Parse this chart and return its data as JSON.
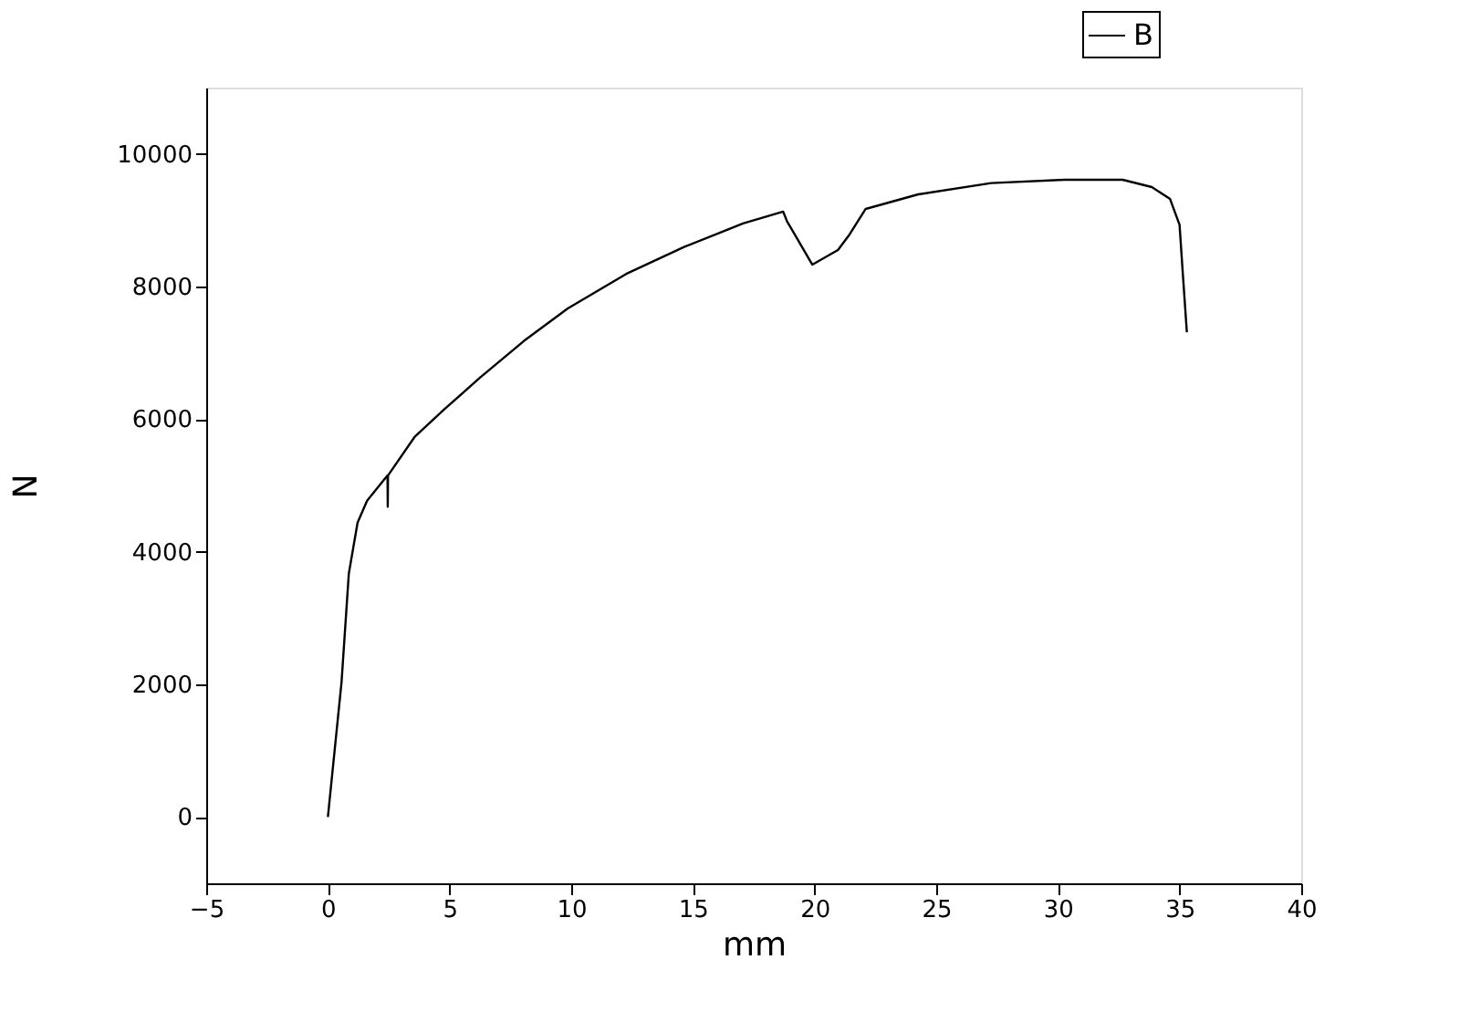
{
  "chart_data": {
    "type": "line",
    "xlabel": "mm",
    "ylabel": "N",
    "xlim": [
      -5,
      40
    ],
    "xticks": [
      -5,
      0,
      5,
      10,
      15,
      20,
      25,
      30,
      35,
      40
    ],
    "ylim": [
      -1000,
      11000
    ],
    "yticks": [
      0,
      2000,
      4000,
      6000,
      8000,
      10000
    ],
    "grid": false,
    "legend": "top right",
    "marker": "none",
    "line_style": "solid",
    "series": [
      {
        "name": "B",
        "color": "#000000",
        "x": [
          0,
          0.56,
          0.86,
          1.22,
          1.61,
          2.45,
          2.46,
          2.47,
          3.56,
          4.76,
          6.26,
          8.06,
          9.86,
          12.26,
          14.66,
          17.06,
          18.71,
          18.86,
          19.91,
          20.96,
          21.41,
          22.1,
          24.26,
          27.26,
          30.26,
          32.66,
          33.86,
          34.61,
          35.0,
          35.12,
          35.3
        ],
        "values": [
          0,
          2030,
          3670,
          4440,
          4770,
          5150,
          4680,
          5150,
          5730,
          6140,
          6630,
          7180,
          7670,
          8190,
          8600,
          8950,
          9130,
          8990,
          8330,
          8550,
          8770,
          9170,
          9390,
          9560,
          9610,
          9610,
          9500,
          9320,
          8930,
          8270,
          7310
        ]
      }
    ]
  }
}
